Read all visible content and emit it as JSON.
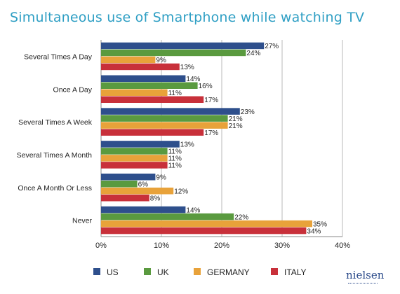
{
  "chart_data": {
    "type": "bar",
    "orientation": "horizontal",
    "title": "Simultaneous use of Smartphone while watching TV",
    "categories": [
      "Several Times A Day",
      "Once A Day",
      "Several Times A Week",
      "Several Times A Month",
      "Once A Month Or Less",
      "Never"
    ],
    "series": [
      {
        "name": "US",
        "color": "#2e4f8c",
        "values": [
          27,
          14,
          23,
          13,
          9,
          14
        ]
      },
      {
        "name": "UK",
        "color": "#5a9a3f",
        "values": [
          24,
          16,
          21,
          11,
          6,
          22
        ]
      },
      {
        "name": "GERMANY",
        "color": "#e8a23a",
        "values": [
          9,
          11,
          21,
          11,
          12,
          35
        ]
      },
      {
        "name": "ITALY",
        "color": "#c8303a",
        "values": [
          13,
          17,
          17,
          11,
          8,
          34
        ]
      }
    ],
    "xlim": [
      0,
      40
    ],
    "xticks": [
      "0%",
      "10%",
      "20%",
      "30%",
      "40%"
    ],
    "value_suffix": "%",
    "grid": true,
    "legend_position": "bottom"
  },
  "logo_text": "nielsen"
}
